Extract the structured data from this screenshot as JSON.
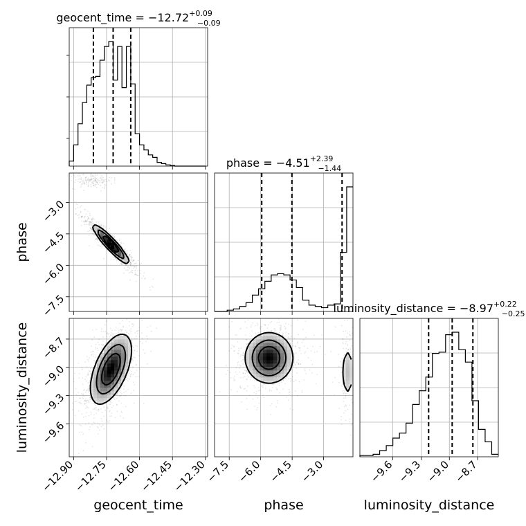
{
  "figure": {
    "type": "corner-plot"
  },
  "chart_data": {
    "type": "corner",
    "parameters": [
      {
        "name": "geocent_time",
        "label": "geocent_time",
        "title_main": "geocent_time = −12.72",
        "title_plus": "+0.09",
        "title_minus": "−0.09",
        "range": [
          -12.92,
          -12.29
        ],
        "ticks": [
          -12.9,
          -12.75,
          -12.6,
          -12.45,
          -12.3
        ],
        "tick_labels": [
          "−12.90",
          "−12.75",
          "−12.60",
          "−12.45",
          "−12.30"
        ],
        "quantiles": [
          -12.81,
          -12.72,
          -12.64
        ],
        "hist": {
          "bin_edges": [
            -12.92,
            -12.9,
            -12.88,
            -12.86,
            -12.84,
            -12.82,
            -12.8,
            -12.78,
            -12.76,
            -12.74,
            -12.72,
            -12.7,
            -12.68,
            -12.66,
            -12.64,
            -12.62,
            -12.6,
            -12.58,
            -12.56,
            -12.54,
            -12.52,
            -12.5,
            -12.48,
            -12.46,
            -12.44,
            -12.42,
            -12.4,
            -12.38,
            -12.36,
            -12.34,
            -12.32,
            -12.3
          ],
          "counts": [
            0.04,
            0.17,
            0.34,
            0.51,
            0.65,
            0.71,
            0.72,
            0.85,
            0.96,
            1.0,
            0.69,
            0.96,
            0.63,
            0.96,
            0.66,
            0.26,
            0.17,
            0.13,
            0.09,
            0.07,
            0.03,
            0.02,
            0.01,
            0.005,
            0,
            0,
            0,
            0,
            0,
            0,
            0
          ]
        }
      },
      {
        "name": "phase",
        "label": "phase",
        "title_main": "phase = −4.51",
        "title_plus": "+2.39",
        "title_minus": "−1.44",
        "range": [
          -8.2,
          -1.6
        ],
        "ticks": [
          -7.5,
          -6.0,
          -4.5,
          -3.0
        ],
        "tick_labels": [
          "−7.5",
          "−6.0",
          "−4.5",
          "−3.0"
        ],
        "quantiles": [
          -5.95,
          -4.51,
          -2.12
        ],
        "hist": {
          "bin_edges": [
            -8.2,
            -7.9,
            -7.6,
            -7.3,
            -7.0,
            -6.7,
            -6.4,
            -6.1,
            -5.8,
            -5.5,
            -5.2,
            -4.9,
            -4.6,
            -4.3,
            -4.0,
            -3.7,
            -3.4,
            -3.1,
            -2.8,
            -2.5,
            -2.2,
            -1.9,
            -1.6
          ],
          "counts": [
            0.0,
            0.0,
            0.01,
            0.02,
            0.04,
            0.07,
            0.13,
            0.18,
            0.24,
            0.29,
            0.3,
            0.29,
            0.25,
            0.19,
            0.09,
            0.05,
            0.04,
            0.03,
            0.05,
            0.06,
            0.47,
            0.99
          ]
        }
      },
      {
        "name": "luminosity_distance",
        "label": "luminosity_distance",
        "title_main": "luminosity_distance = −8.97",
        "title_plus": "+0.22",
        "title_minus": "−0.25",
        "range": [
          -9.95,
          -8.48
        ],
        "ticks": [
          -9.6,
          -9.3,
          -9.0,
          -8.7
        ],
        "tick_labels": [
          "−9.6",
          "−9.3",
          "−9.0",
          "−8.7"
        ],
        "quantiles": [
          -9.22,
          -8.97,
          -8.75
        ],
        "hist": {
          "bin_edges": [
            -9.95,
            -9.88,
            -9.81,
            -9.74,
            -9.67,
            -9.6,
            -9.53,
            -9.46,
            -9.39,
            -9.32,
            -9.25,
            -9.18,
            -9.11,
            -9.04,
            -8.97,
            -8.9,
            -8.83,
            -8.76,
            -8.69,
            -8.62,
            -8.55,
            -8.48
          ],
          "counts": [
            0.01,
            0.01,
            0.02,
            0.05,
            0.09,
            0.15,
            0.19,
            0.27,
            0.42,
            0.53,
            0.64,
            0.83,
            0.84,
            0.98,
            1.0,
            0.86,
            0.76,
            0.45,
            0.22,
            0.12,
            0.02
          ]
        }
      }
    ],
    "joint_panels": [
      {
        "x": "geocent_time",
        "y": "phase",
        "modes": [
          {
            "center": [
              -12.73,
              -5.0
            ],
            "spread": [
              0.04,
              0.45
            ],
            "corr": -0.93,
            "weight": 0.82
          },
          {
            "center": [
              -12.82,
              -1.95
            ],
            "spread": [
              0.03,
              0.12
            ],
            "corr": 0.0,
            "weight": 0.18
          }
        ]
      },
      {
        "x": "geocent_time",
        "y": "luminosity_distance",
        "modes": [
          {
            "center": [
              -12.73,
              -9.02
            ],
            "spread": [
              0.045,
              0.18
            ],
            "corr": 0.55,
            "weight": 1.0
          }
        ]
      },
      {
        "x": "phase",
        "y": "luminosity_distance",
        "modes": [
          {
            "center": [
              -5.6,
              -8.9
            ],
            "spread": [
              0.55,
              0.13
            ],
            "corr": 0.0,
            "weight": 0.8
          },
          {
            "center": [
              -1.85,
              -9.05
            ],
            "spread": [
              0.18,
              0.17
            ],
            "corr": 0.0,
            "weight": 0.2
          }
        ]
      }
    ],
    "grid": true,
    "quantile_line_style": "dashed",
    "contour_levels": 3
  }
}
